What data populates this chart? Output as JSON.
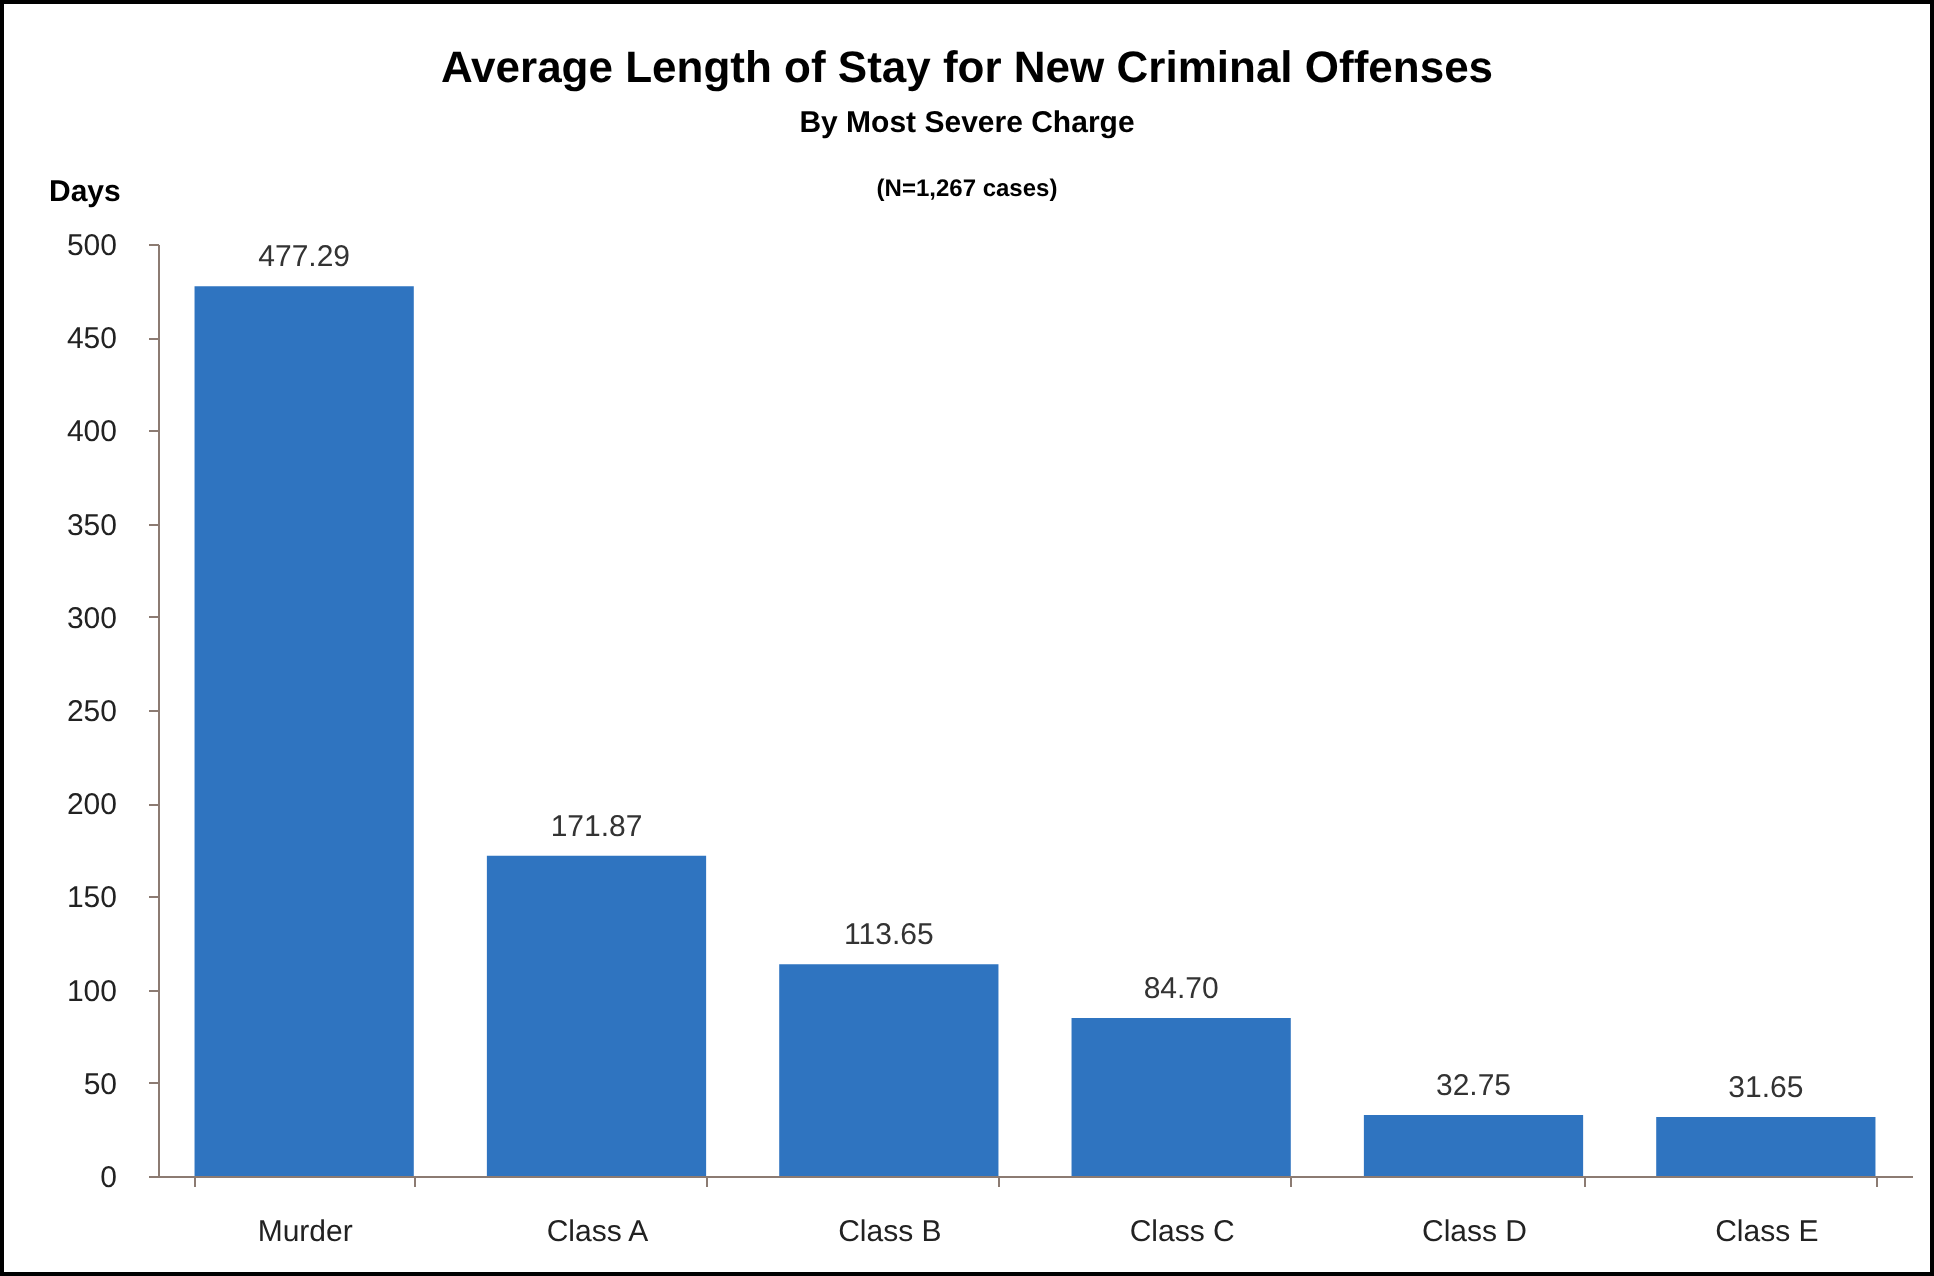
{
  "chart_data": {
    "type": "bar",
    "title": "Average Length of Stay for New Criminal Offenses",
    "subtitle": "By Most Severe Charge",
    "annotations": [
      "(N=1,267 cases)"
    ],
    "ylabel": "Days",
    "categories": [
      "Murder",
      "Class A",
      "Class B",
      "Class C",
      "Class D",
      "Class E"
    ],
    "values": [
      477.29,
      171.87,
      113.65,
      84.7,
      32.75,
      31.65
    ],
    "value_labels": [
      "477.29",
      "171.87",
      "113.65",
      "84.70",
      "32.75",
      "31.65"
    ],
    "color": "#2f74c0",
    "ylim": [
      0,
      500
    ],
    "yticks": [
      0,
      50,
      100,
      150,
      200,
      250,
      300,
      350,
      400,
      450,
      500
    ]
  }
}
